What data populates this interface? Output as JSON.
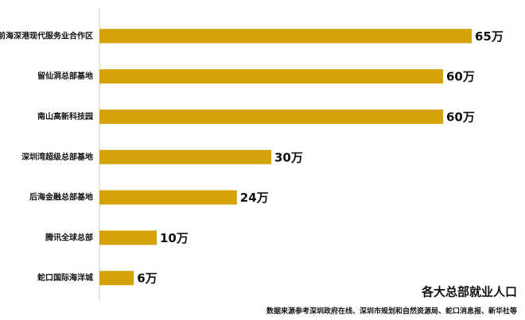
{
  "chart_data": {
    "type": "bar",
    "orientation": "horizontal",
    "title": "各大总部就业人口",
    "source": "数据来源参考深圳政府在线、深圳市规划和自然资源局、蛇口消息报、新华社等",
    "categories": [
      "前海深港现代服务业合作区",
      "留仙洞总部基地",
      "南山高新科技园",
      "深圳湾超级总部基地",
      "后海金融总部基地",
      "腾讯全球总部",
      "蛇口国际海洋城"
    ],
    "values": [
      65,
      60,
      60,
      30,
      24,
      10,
      6
    ],
    "value_labels": [
      "65万",
      "60万",
      "60万",
      "30万",
      "24万",
      "10万",
      "6万"
    ],
    "color": "#d4a106"
  }
}
